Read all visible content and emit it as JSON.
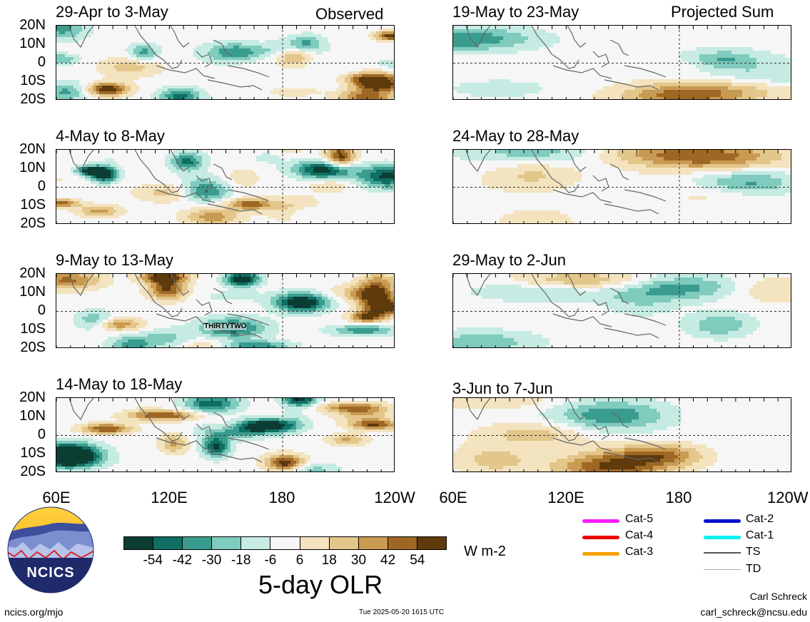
{
  "observed_label": "Observed",
  "projected_label": "Projected Sum",
  "left_panels": [
    {
      "title": "29-Apr to 3-May"
    },
    {
      "title": "4-May to 8-May"
    },
    {
      "title": "9-May to 13-May"
    },
    {
      "title": "14-May to 18-May"
    }
  ],
  "right_panels": [
    {
      "title": "19-May to 23-May"
    },
    {
      "title": "24-May to 28-May"
    },
    {
      "title": "29-May to 2-Jun"
    },
    {
      "title": "3-Jun to 7-Jun"
    }
  ],
  "lat_labels": [
    "20N",
    "10N",
    "0",
    "10S",
    "20S"
  ],
  "lon_labels": [
    "60E",
    "120E",
    "180",
    "120W"
  ],
  "storm_label": "THIRTYTWO",
  "colorbar": {
    "colors": [
      "#0b3d33",
      "#0f6f63",
      "#3a9c8e",
      "#7fcbbd",
      "#c6ebe3",
      "#f6f6f6",
      "#f3e3bf",
      "#e3c68a",
      "#c99a52",
      "#9e6824",
      "#5e3a0d"
    ],
    "values": [
      "-54",
      "-42",
      "-30",
      "-18",
      "-6",
      "6",
      "18",
      "30",
      "42",
      "54"
    ],
    "units": "W m-2",
    "title": "5-day OLR"
  },
  "logo": {
    "text": "NCICS"
  },
  "legend": [
    {
      "label": "Cat-5",
      "color": "#ff1aff"
    },
    {
      "label": "Cat-4",
      "color": "#ee0000"
    },
    {
      "label": "Cat-3",
      "color": "#f6a100"
    },
    {
      "label": "Cat-2",
      "color": "#0011cc"
    },
    {
      "label": "Cat-1",
      "color": "#00f0f0"
    },
    {
      "label": "TS",
      "color": "#555555"
    },
    {
      "label": "TD",
      "color": "#aaaaaa"
    }
  ],
  "footer": {
    "url": "ncics.org/mjo",
    "timestamp": "Tue 2025-05-20 1615 UTC",
    "author": "Carl Schreck",
    "email": "carl_schreck@ncsu.edu"
  }
}
